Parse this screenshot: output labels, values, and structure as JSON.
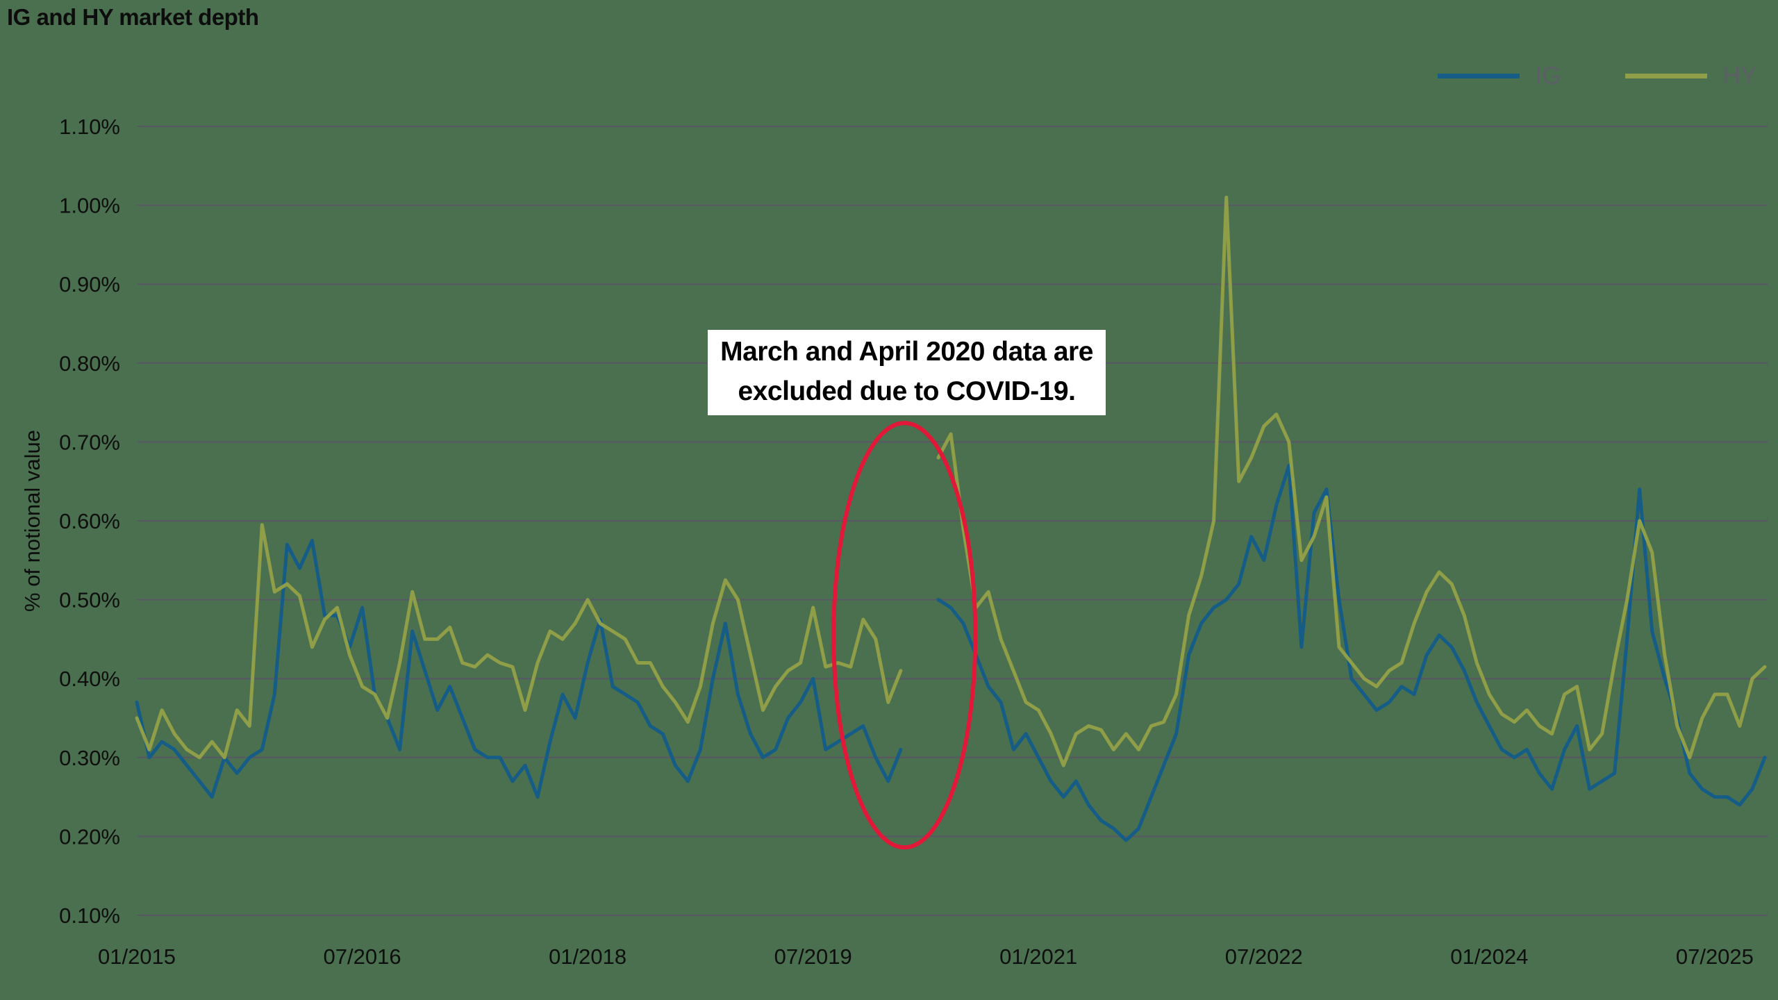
{
  "chart_data": {
    "type": "line",
    "title": "IG and HY market depth",
    "xlabel": "",
    "ylabel": "% of notional value",
    "ylim": [
      0.1,
      1.1
    ],
    "grid": "horizontal",
    "legend_position": "top-right",
    "y_ticks": {
      "labels": [
        "1.10%",
        "1.00%",
        "0.90%",
        "0.80%",
        "0.70%",
        "0.60%",
        "0.50%",
        "0.40%",
        "0.30%",
        "0.20%",
        "0.10%"
      ],
      "values": [
        1.1,
        1.0,
        0.9,
        0.8,
        0.7,
        0.6,
        0.5,
        0.4,
        0.3,
        0.2,
        0.1
      ]
    },
    "x_start": "01/2015",
    "x_interval": "monthly",
    "x_total_months": 130,
    "x_tick_months": [
      0,
      18,
      36,
      54,
      72,
      90,
      108,
      126
    ],
    "x_tick_labels": [
      "01/2015",
      "07/2016",
      "01/2018",
      "07/2019",
      "01/2021",
      "07/2022",
      "01/2024",
      "07/2025"
    ],
    "excluded_months": [
      "03/2020",
      "04/2020"
    ],
    "series": [
      {
        "name": "IG",
        "color": "#155d87",
        "values": [
          0.37,
          0.3,
          0.32,
          0.31,
          0.29,
          0.27,
          0.25,
          0.3,
          0.28,
          0.3,
          0.31,
          0.38,
          0.57,
          0.54,
          0.575,
          0.48,
          0.48,
          0.44,
          0.49,
          0.38,
          0.35,
          0.31,
          0.46,
          0.41,
          0.36,
          0.39,
          0.35,
          0.31,
          0.3,
          0.3,
          0.27,
          0.29,
          0.25,
          0.32,
          0.38,
          0.35,
          0.42,
          0.475,
          0.39,
          0.38,
          0.37,
          0.34,
          0.33,
          0.29,
          0.27,
          0.31,
          0.4,
          0.47,
          0.38,
          0.33,
          0.3,
          0.31,
          0.35,
          0.37,
          0.4,
          0.31,
          0.32,
          0.33,
          0.34,
          0.3,
          0.27,
          0.31,
          null,
          null,
          0.5,
          0.49,
          0.47,
          0.43,
          0.39,
          0.37,
          0.31,
          0.33,
          0.3,
          0.27,
          0.25,
          0.27,
          0.24,
          0.22,
          0.21,
          0.195,
          0.21,
          0.25,
          0.29,
          0.33,
          0.43,
          0.47,
          0.49,
          0.5,
          0.52,
          0.58,
          0.55,
          0.62,
          0.67,
          0.44,
          0.61,
          0.64,
          0.5,
          0.4,
          0.38,
          0.36,
          0.37,
          0.39,
          0.38,
          0.43,
          0.455,
          0.44,
          0.41,
          0.37,
          0.34,
          0.31,
          0.3,
          0.31,
          0.28,
          0.26,
          0.31,
          0.34,
          0.26,
          0.27,
          0.28,
          0.45,
          0.64,
          0.46,
          0.4,
          0.35,
          0.28,
          0.26,
          0.25,
          0.25,
          0.24,
          0.26,
          0.3
        ]
      },
      {
        "name": "HY",
        "color": "#8f9e47",
        "values": [
          0.35,
          0.31,
          0.36,
          0.33,
          0.31,
          0.3,
          0.32,
          0.3,
          0.36,
          0.34,
          0.595,
          0.51,
          0.52,
          0.505,
          0.44,
          0.475,
          0.49,
          0.43,
          0.39,
          0.38,
          0.35,
          0.42,
          0.51,
          0.45,
          0.45,
          0.465,
          0.42,
          0.415,
          0.43,
          0.42,
          0.415,
          0.36,
          0.42,
          0.46,
          0.45,
          0.47,
          0.5,
          0.47,
          0.46,
          0.45,
          0.42,
          0.42,
          0.39,
          0.37,
          0.345,
          0.39,
          0.47,
          0.525,
          0.5,
          0.43,
          0.36,
          0.39,
          0.41,
          0.42,
          0.49,
          0.415,
          0.42,
          0.415,
          0.475,
          0.45,
          0.37,
          0.41,
          null,
          null,
          0.68,
          0.71,
          0.59,
          0.49,
          0.51,
          0.45,
          0.41,
          0.37,
          0.36,
          0.33,
          0.29,
          0.33,
          0.34,
          0.335,
          0.31,
          0.33,
          0.31,
          0.34,
          0.345,
          0.38,
          0.48,
          0.53,
          0.6,
          1.01,
          0.65,
          0.68,
          0.72,
          0.735,
          0.7,
          0.55,
          0.58,
          0.63,
          0.44,
          0.42,
          0.4,
          0.39,
          0.41,
          0.42,
          0.47,
          0.51,
          0.535,
          0.52,
          0.48,
          0.42,
          0.38,
          0.355,
          0.345,
          0.36,
          0.34,
          0.33,
          0.38,
          0.39,
          0.31,
          0.33,
          0.42,
          0.5,
          0.6,
          0.56,
          0.43,
          0.34,
          0.3,
          0.35,
          0.38,
          0.38,
          0.34,
          0.4,
          0.415
        ]
      }
    ]
  },
  "annotation": {
    "line1": "March and April 2020 data are",
    "line2": "excluded due to COVID-19.",
    "ellipse": {
      "center_month": 61.3,
      "center_value": 0.455,
      "rx_months": 5.66,
      "ry_value": 0.269,
      "color": "#e11837"
    }
  },
  "colors": {
    "background": "#4a7050",
    "gridline": "#5a5765",
    "axis_text": "#0e0e0e",
    "legend_text": "#5c6066",
    "annotation_bg": "#ffffff"
  }
}
